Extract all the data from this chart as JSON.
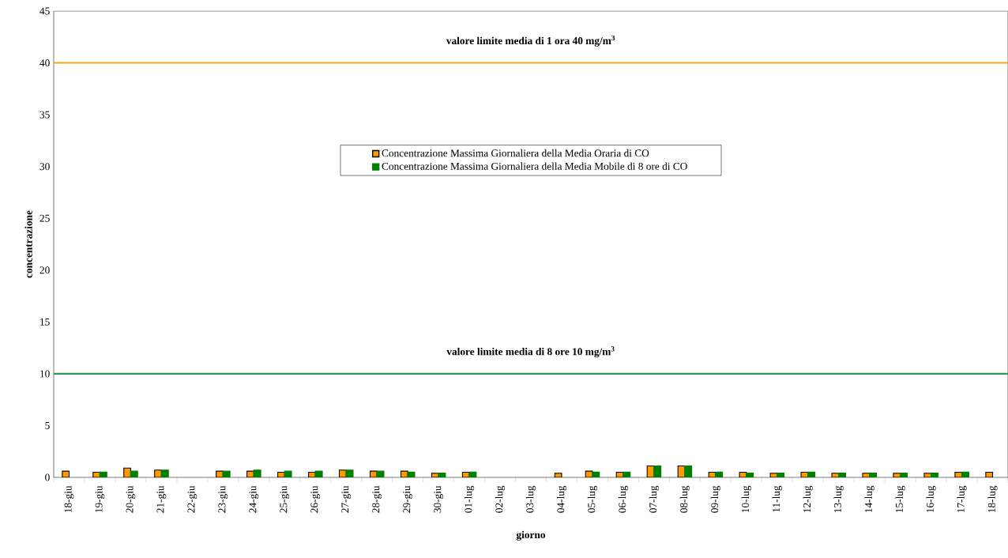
{
  "chart_data": {
    "type": "bar",
    "xlabel": "giorno",
    "ylabel": "concentrazione",
    "categories": [
      "18-giu",
      "19-giu",
      "20-giu",
      "21-giu",
      "22-giu",
      "23-giu",
      "24-giu",
      "25-giu",
      "26-giu",
      "27-giu",
      "28-giu",
      "29-giu",
      "30-giu",
      "01-lug",
      "02-lug",
      "03-lug",
      "04-lug",
      "05-lug",
      "06-lug",
      "07-lug",
      "08-lug",
      "09-lug",
      "10-lug",
      "11-lug",
      "12-lug",
      "13-lug",
      "14-lug",
      "15-lug",
      "16-lug",
      "17-lug",
      "18-lug"
    ],
    "series": [
      {
        "name": "Concentrazione Massima Giornaliera della Media Oraria di CO",
        "color": "#ff9900",
        "values": [
          0.6,
          0.5,
          0.9,
          0.7,
          null,
          0.6,
          0.6,
          0.5,
          0.5,
          0.7,
          0.6,
          0.6,
          0.4,
          0.5,
          null,
          null,
          0.4,
          0.6,
          0.5,
          1.1,
          1.1,
          0.5,
          0.5,
          0.4,
          0.5,
          0.4,
          0.4,
          0.4,
          0.4,
          0.5,
          0.5
        ]
      },
      {
        "name": "Concentrazione Massima Giornaliera della Media Mobile di 8 ore di CO",
        "color": "#008000",
        "values": [
          null,
          0.5,
          0.6,
          0.7,
          null,
          0.6,
          0.7,
          0.6,
          0.6,
          0.7,
          0.6,
          0.5,
          0.4,
          0.5,
          null,
          null,
          null,
          0.5,
          0.5,
          1.1,
          1.1,
          0.5,
          0.4,
          0.4,
          0.5,
          0.4,
          0.4,
          0.4,
          0.4,
          0.5,
          null
        ]
      }
    ],
    "ylim": [
      0,
      45
    ],
    "yticks": [
      0,
      5,
      10,
      15,
      20,
      25,
      30,
      35,
      40,
      45
    ],
    "grid": false,
    "legend": "top",
    "ref_lines": [
      {
        "axis": "y",
        "value": 40,
        "label": "valore limite media di 1 ora      40 mg/m$^{3}$",
        "color": "#f7a11a"
      },
      {
        "axis": "y",
        "value": 10,
        "label": "valore limite media di 8 ore      10 mg/m$^{3}$",
        "color": "#2e9b5c"
      }
    ]
  }
}
